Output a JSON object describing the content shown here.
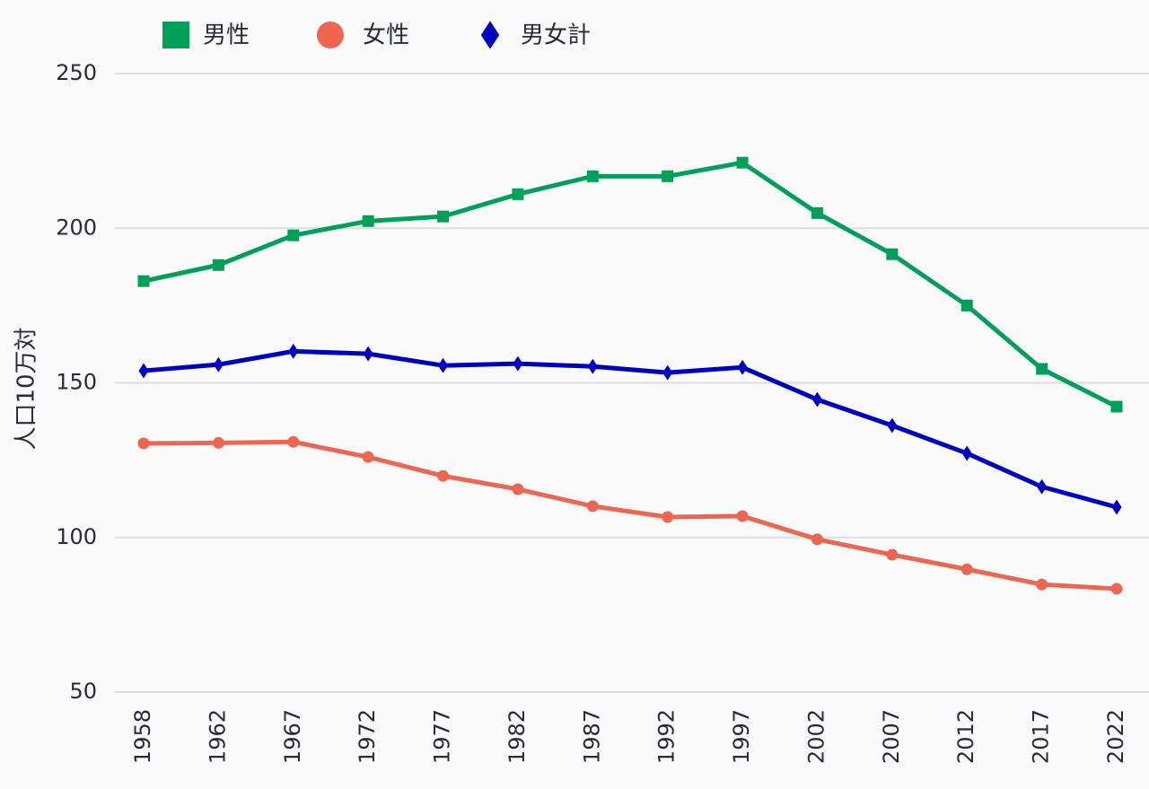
{
  "chart_data": {
    "type": "line",
    "title": "",
    "xlabel": "",
    "ylabel": "人口10万対",
    "ylim": [
      50,
      250
    ],
    "yticks": [
      50,
      100,
      150,
      200,
      250
    ],
    "grid": true,
    "legend_position": "top-left",
    "categories": [
      "1958",
      "1962",
      "1967",
      "1972",
      "1977",
      "1982",
      "1987",
      "1992",
      "1997",
      "2002",
      "2007",
      "2012",
      "2017",
      "2022"
    ],
    "series": [
      {
        "name": "男性",
        "color": "#00a05a",
        "marker": "square",
        "values": [
          182.9,
          188.1,
          197.7,
          202.3,
          203.8,
          211.0,
          216.8,
          216.8,
          221.2,
          204.9,
          191.6,
          175.0,
          154.5,
          142.3
        ]
      },
      {
        "name": "女性",
        "color": "#ec6652",
        "marker": "circle",
        "values": [
          130.4,
          130.6,
          130.9,
          126.0,
          119.9,
          115.6,
          110.1,
          106.6,
          106.9,
          99.4,
          94.4,
          89.7,
          84.8,
          83.4
        ]
      },
      {
        "name": "男女計",
        "color": "#0000c0",
        "marker": "diamond",
        "values": [
          153.9,
          155.9,
          160.2,
          159.4,
          155.6,
          156.2,
          155.3,
          153.3,
          155.0,
          144.6,
          136.2,
          127.2,
          116.4,
          109.8
        ]
      }
    ]
  }
}
